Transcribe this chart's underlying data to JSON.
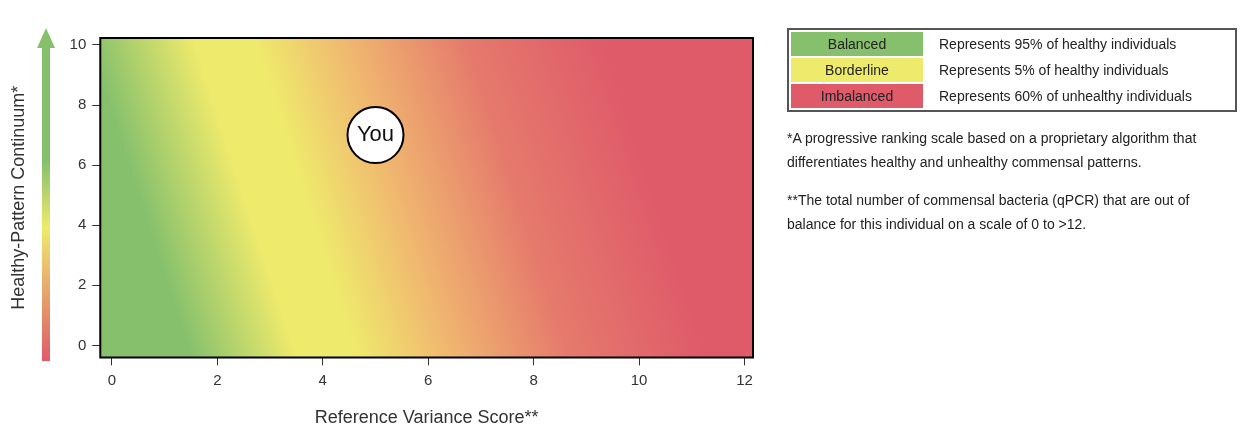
{
  "chart_data": {
    "type": "scatter",
    "xlabel": "Reference Variance Score**",
    "ylabel": "Healthy-Pattern Continuum*",
    "series": [
      {
        "color": "#ffffff",
        "x": [
          5
        ],
        "values": [
          7
        ]
      }
    ],
    "xlim": [
      -0.22,
      12.16
    ],
    "ylim": [
      -0.4,
      10.23
    ],
    "xticks": [
      0,
      2,
      4,
      6,
      8,
      10,
      12
    ],
    "yticks": [
      0,
      2,
      4,
      6,
      8,
      10
    ],
    "grid": false,
    "legend": false,
    "marker": "circle",
    "annotations": [
      {
        "text": "You",
        "x": 5,
        "y": 7
      },
      "Balanced",
      "Represents 95% of healthy individuals",
      "Borderline",
      "Represents 5% of healthy individuals",
      "Imbalanced",
      "Represents 60% of unhealthy individuals",
      "*A progressive ranking scale based on a proprietary algorithm that differentiates healthy and unhealthy commensal patterns.",
      "**The total number of commensal bacteria (qPCR) that are out of balance for this individual on a scale of 0 to >12."
    ]
  }
}
